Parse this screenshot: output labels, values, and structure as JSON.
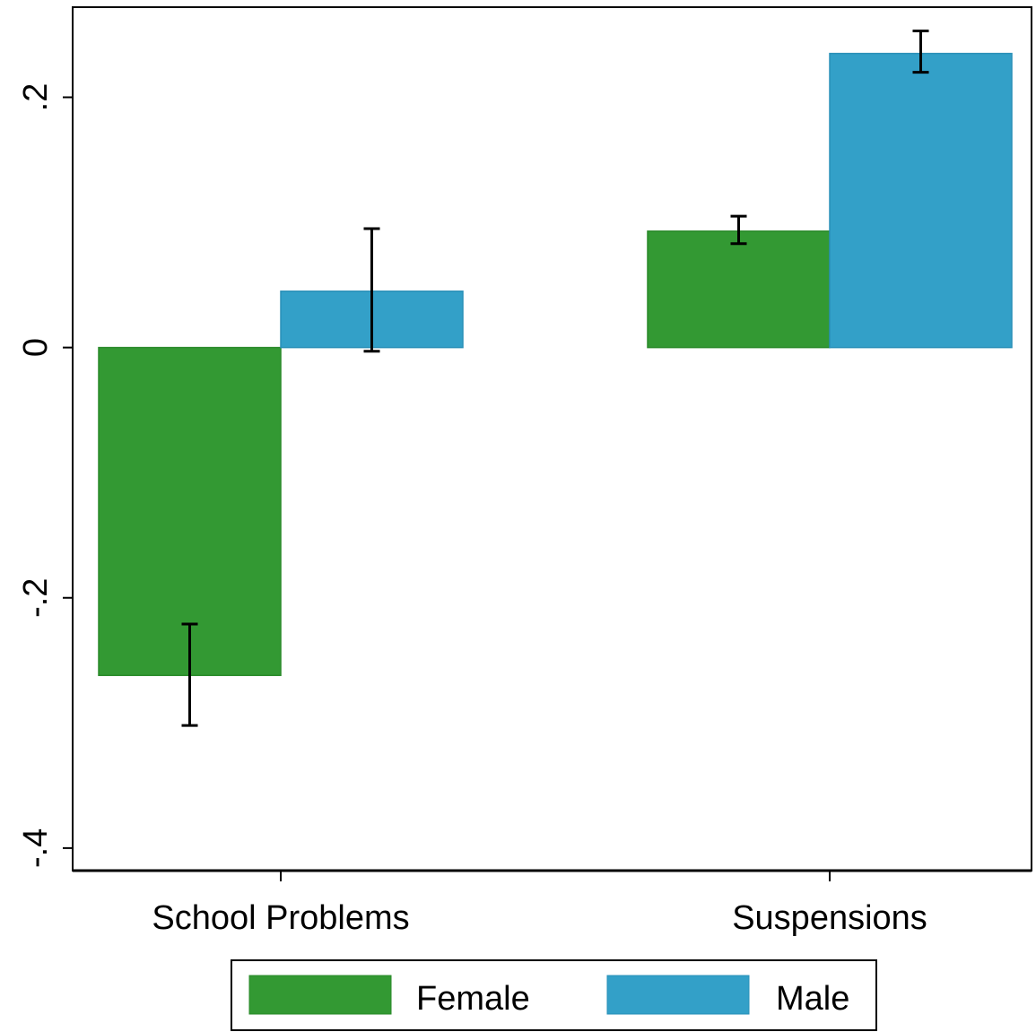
{
  "chart_data": {
    "type": "bar",
    "categories": [
      "School Problems",
      "Suspensions"
    ],
    "series": [
      {
        "name": "Female",
        "color": "#339933",
        "values": [
          -0.262,
          0.093
        ],
        "ci_low": [
          -0.302,
          0.083
        ],
        "ci_high": [
          -0.221,
          0.105
        ]
      },
      {
        "name": "Male",
        "color": "#33a0c8",
        "values": [
          0.045,
          0.235
        ],
        "ci_low": [
          -0.003,
          0.22
        ],
        "ci_high": [
          0.095,
          0.253
        ]
      }
    ],
    "title": "",
    "xlabel": "",
    "ylabel": "",
    "ylim": [
      -0.418,
      0.272
    ],
    "yticks": [
      {
        "value": -0.4,
        "label": "-.4"
      },
      {
        "value": -0.2,
        "label": "-.2"
      },
      {
        "value": 0,
        "label": "0"
      },
      {
        "value": 0.2,
        "label": ".2"
      }
    ],
    "grid": false,
    "legend_position": "bottom"
  }
}
